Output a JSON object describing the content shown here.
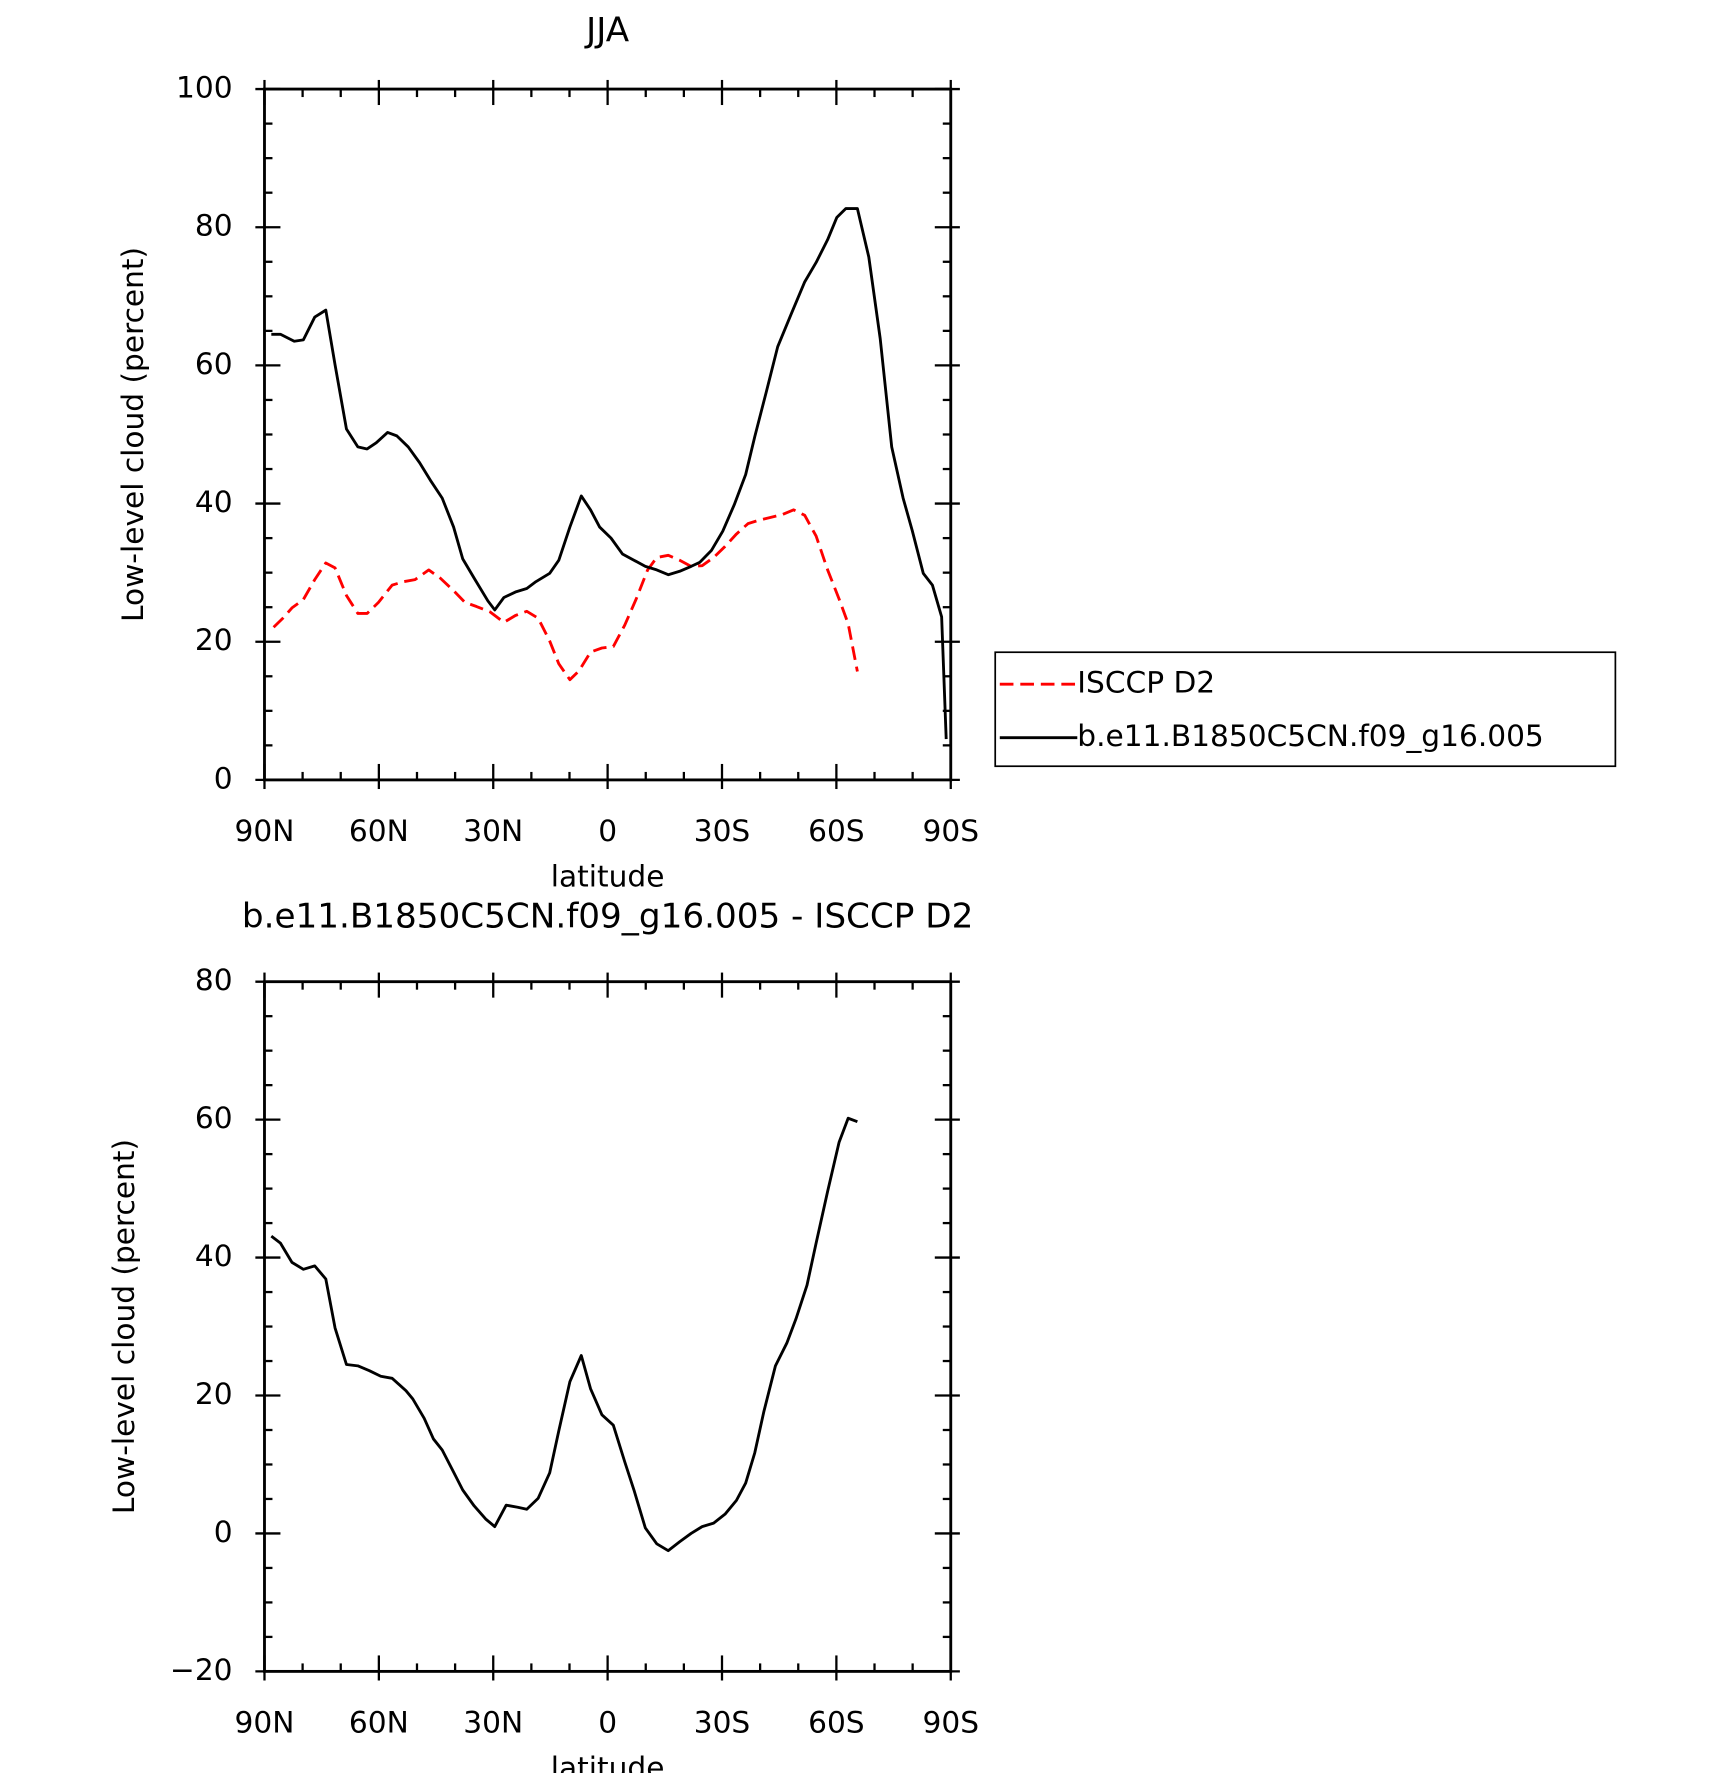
{
  "chart_data": [
    {
      "type": "line",
      "title": "JJA",
      "xlabel": "latitude",
      "ylabel": "Low-level cloud (percent)",
      "xlim": [
        90,
        -90
      ],
      "xticks": [
        {
          "value": 90,
          "label": "90N"
        },
        {
          "value": 60,
          "label": "60N"
        },
        {
          "value": 30,
          "label": "30N"
        },
        0,
        {
          "value": -30,
          "label": "30S"
        },
        {
          "value": -60,
          "label": "60S"
        },
        {
          "value": -90,
          "label": "90S"
        }
      ],
      "xminorticks": [
        80,
        70,
        50,
        40,
        20,
        10,
        -10,
        -20,
        -40,
        -50,
        -70,
        -80
      ],
      "ylim": [
        0,
        100
      ],
      "yticks": [
        0,
        20,
        40,
        60,
        80,
        100
      ],
      "yminorticks": [
        5,
        10,
        15,
        25,
        30,
        35,
        45,
        50,
        55,
        65,
        70,
        75,
        85,
        90,
        95
      ],
      "legend": "right",
      "series": [
        {
          "name": "ISCCP D2",
          "color": "#ff0000",
          "dash": true,
          "x": [
            87.6,
            85.2,
            82.8,
            79.8,
            76.8,
            73.9,
            71.5,
            68.5,
            65.5,
            63.1,
            60.1,
            56.5,
            53.5,
            50.5,
            46.9,
            43.9,
            40.4,
            37.4,
            34.4,
            30.8,
            27.2,
            24.2,
            21.2,
            18.2,
            15.2,
            12.8,
            9.9,
            7.5,
            4.5,
            1.5,
            -1.5,
            -4.5,
            -7.5,
            -10.5,
            -12.9,
            -15.9,
            -18.9,
            -21.9,
            -24.8,
            -27.8,
            -30.8,
            -33.8,
            -36.8,
            -39.8,
            -42.8,
            -45.8,
            -48.8,
            -51.7,
            -54.7,
            -57.7,
            -60.7,
            -63.1,
            -65.5
          ],
          "values": [
            22.1,
            23.4,
            24.9,
            26.1,
            29.0,
            31.4,
            30.7,
            26.7,
            24.1,
            24.1,
            25.7,
            28.2,
            28.7,
            29.0,
            30.4,
            29.2,
            27.4,
            25.7,
            25.1,
            24.3,
            22.8,
            23.8,
            24.4,
            23.4,
            20.1,
            16.8,
            14.5,
            15.8,
            18.5,
            19.1,
            19.3,
            22.4,
            26.2,
            30.4,
            32.2,
            32.5,
            31.8,
            30.9,
            31.0,
            32.2,
            33.8,
            35.6,
            37.1,
            37.6,
            38.0,
            38.4,
            39.1,
            38.3,
            35.3,
            30.4,
            26.2,
            22.6,
            15.7
          ]
        },
        {
          "name": "b.e11.B1850C5CN.f09_g16.005",
          "color": "#000000",
          "dash": false,
          "x": [
            88.2,
            85.8,
            82.2,
            79.8,
            76.8,
            73.9,
            71.5,
            68.5,
            65.5,
            63.1,
            60.7,
            57.7,
            55.3,
            52.3,
            49.3,
            46.3,
            43.4,
            40.4,
            38.0,
            35.0,
            31.4,
            29.6,
            27.2,
            24.2,
            21.2,
            18.8,
            15.2,
            12.8,
            9.9,
            6.9,
            4.5,
            2.1,
            -0.9,
            -3.9,
            -6.9,
            -9.9,
            -12.9,
            -15.9,
            -18.9,
            -21.9,
            -24.2,
            -27.2,
            -30.2,
            -33.2,
            -36.2,
            -38.6,
            -41.6,
            -44.6,
            -48.2,
            -51.7,
            -54.7,
            -57.7,
            -60.1,
            -62.5,
            -65.5,
            -68.5,
            -71.5,
            -74.5,
            -77.5,
            -79.9,
            -82.8,
            -85.2,
            -87.6,
            -88.8
          ],
          "values": [
            64.5,
            64.5,
            63.5,
            63.7,
            67.0,
            68.0,
            60.1,
            50.8,
            48.2,
            47.9,
            48.8,
            50.3,
            49.8,
            48.2,
            45.9,
            43.2,
            40.8,
            36.6,
            32.0,
            29.2,
            25.9,
            24.6,
            26.4,
            27.2,
            27.7,
            28.7,
            29.9,
            31.8,
            36.6,
            41.1,
            39.1,
            36.6,
            35.0,
            32.7,
            31.8,
            30.9,
            30.4,
            29.7,
            30.2,
            30.9,
            31.5,
            33.2,
            36.0,
            39.8,
            44.2,
            49.7,
            56.1,
            62.7,
            67.5,
            72.1,
            74.9,
            78.2,
            81.4,
            82.7,
            82.7,
            75.7,
            63.9,
            48.2,
            40.8,
            36.1,
            29.9,
            28.2,
            23.6,
            5.9
          ]
        }
      ]
    },
    {
      "type": "line",
      "title": "b.e11.B1850C5CN.f09_g16.005 - ISCCP D2",
      "xlabel": "latitude",
      "ylabel": "Low-level cloud (percent)",
      "xlim": [
        90,
        -90
      ],
      "xticks": [
        {
          "value": 90,
          "label": "90N"
        },
        {
          "value": 60,
          "label": "60N"
        },
        {
          "value": 30,
          "label": "30N"
        },
        0,
        {
          "value": -30,
          "label": "30S"
        },
        {
          "value": -60,
          "label": "60S"
        },
        {
          "value": -90,
          "label": "90S"
        }
      ],
      "xminorticks": [
        80,
        70,
        50,
        40,
        20,
        10,
        -10,
        -20,
        -40,
        -50,
        -70,
        -80
      ],
      "ylim": [
        -20,
        80
      ],
      "yticks": [
        {
          "value": -20,
          "label": "−20"
        },
        0,
        20,
        40,
        60,
        80
      ],
      "yminorticks": [
        -15,
        -10,
        -5,
        5,
        10,
        15,
        25,
        30,
        35,
        45,
        50,
        55,
        65,
        70,
        75
      ],
      "color": "#000000",
      "x": [
        88.2,
        85.8,
        82.8,
        79.8,
        76.8,
        73.9,
        71.5,
        68.5,
        65.5,
        62.5,
        59.5,
        56.5,
        52.9,
        51.1,
        48.1,
        45.7,
        43.4,
        40.4,
        38.0,
        35.0,
        32.0,
        29.6,
        26.6,
        23.6,
        21.2,
        18.2,
        15.2,
        12.8,
        9.9,
        6.9,
        4.5,
        1.5,
        -1.5,
        -4.5,
        -6.9,
        -9.9,
        -12.9,
        -15.9,
        -18.9,
        -21.9,
        -24.8,
        -27.8,
        -30.8,
        -33.8,
        -36.2,
        -38.6,
        -41.0,
        -44.0,
        -47.0,
        -49.4,
        -52.3,
        -54.7,
        -57.7,
        -60.7,
        -63.1,
        -65.5
      ],
      "values": [
        43.1,
        42.1,
        39.3,
        38.3,
        38.8,
        36.9,
        29.8,
        24.5,
        24.3,
        23.6,
        22.8,
        22.5,
        20.7,
        19.5,
        16.7,
        13.7,
        12.1,
        8.9,
        6.3,
        4.0,
        2.1,
        1.0,
        4.1,
        3.8,
        3.5,
        5.1,
        8.8,
        14.9,
        22.0,
        25.8,
        21.0,
        17.2,
        15.7,
        10.4,
        6.3,
        0.8,
        -1.5,
        -2.5,
        -1.2,
        0.0,
        1.0,
        1.5,
        2.8,
        4.8,
        7.3,
        11.7,
        17.7,
        24.3,
        27.6,
        31.1,
        36.0,
        42.1,
        49.6,
        56.7,
        60.2,
        59.7
      ]
    }
  ]
}
